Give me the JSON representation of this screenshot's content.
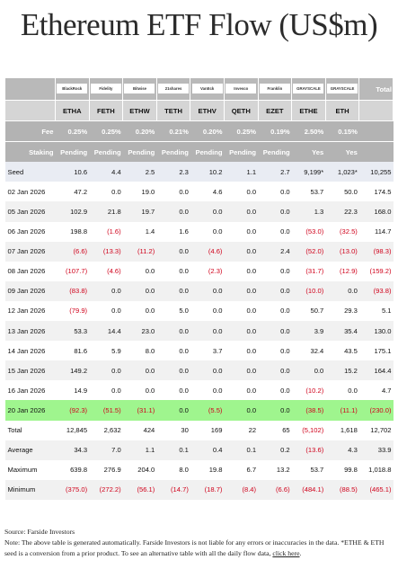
{
  "title": "Ethereum ETF Flow (US$m)",
  "table": {
    "logos": [
      "BlackRock",
      "Fidelity",
      "Bitwise",
      "21shares",
      "VanEck",
      "Invesco",
      "Franklin",
      "GRAYSCALE",
      "GRAYSCALE"
    ],
    "total_header": "Total",
    "tickers": [
      "ETHA",
      "FETH",
      "ETHW",
      "TETH",
      "ETHV",
      "QETH",
      "EZET",
      "ETHE",
      "ETH"
    ],
    "meta_rows": [
      [
        "Fee",
        "0.25%",
        "0.25%",
        "0.20%",
        "0.21%",
        "0.20%",
        "0.25%",
        "0.19%",
        "2.50%",
        "0.15%"
      ],
      [
        "Staking",
        "Pending",
        "Pending",
        "Pending",
        "Pending",
        "Pending",
        "Pending",
        "Pending",
        "Yes",
        "Yes"
      ]
    ],
    "seed_row": [
      "Seed",
      "10.6",
      "4.4",
      "2.5",
      "2.3",
      "10.2",
      "1.1",
      "2.7",
      "9,199*",
      "1,023*",
      "10,255"
    ],
    "rows": [
      [
        "02 Jan 2026",
        "47.2",
        "0.0",
        "19.0",
        "0.0",
        "4.6",
        "0.0",
        "0.0",
        "53.7",
        "50.0",
        "174.5"
      ],
      [
        "05 Jan 2026",
        "102.9",
        "21.8",
        "19.7",
        "0.0",
        "0.0",
        "0.0",
        "0.0",
        "1.3",
        "22.3",
        "168.0"
      ],
      [
        "06 Jan 2026",
        "198.8",
        "(1.6)",
        "1.4",
        "1.6",
        "0.0",
        "0.0",
        "0.0",
        "(53.0)",
        "(32.5)",
        "114.7"
      ],
      [
        "07 Jan 2026",
        "(6.6)",
        "(13.3)",
        "(11.2)",
        "0.0",
        "(4.6)",
        "0.0",
        "2.4",
        "(52.0)",
        "(13.0)",
        "(98.3)"
      ],
      [
        "08 Jan 2026",
        "(107.7)",
        "(4.6)",
        "0.0",
        "0.0",
        "(2.3)",
        "0.0",
        "0.0",
        "(31.7)",
        "(12.9)",
        "(159.2)"
      ],
      [
        "09 Jan 2026",
        "(83.8)",
        "0.0",
        "0.0",
        "0.0",
        "0.0",
        "0.0",
        "0.0",
        "(10.0)",
        "0.0",
        "(93.8)"
      ],
      [
        "12 Jan 2026",
        "(79.9)",
        "0.0",
        "0.0",
        "5.0",
        "0.0",
        "0.0",
        "0.0",
        "50.7",
        "29.3",
        "5.1"
      ],
      [
        "13 Jan 2026",
        "53.3",
        "14.4",
        "23.0",
        "0.0",
        "0.0",
        "0.0",
        "0.0",
        "3.9",
        "35.4",
        "130.0"
      ],
      [
        "14 Jan 2026",
        "81.6",
        "5.9",
        "8.0",
        "0.0",
        "3.7",
        "0.0",
        "0.0",
        "32.4",
        "43.5",
        "175.1"
      ],
      [
        "15 Jan 2026",
        "149.2",
        "0.0",
        "0.0",
        "0.0",
        "0.0",
        "0.0",
        "0.0",
        "0.0",
        "15.2",
        "164.4"
      ],
      [
        "16 Jan 2026",
        "14.9",
        "0.0",
        "0.0",
        "0.0",
        "0.0",
        "0.0",
        "0.0",
        "(10.2)",
        "0.0",
        "4.7"
      ],
      [
        "20 Jan 2026",
        "(92.3)",
        "(51.5)",
        "(31.1)",
        "0.0",
        "(5.5)",
        "0.0",
        "0.0",
        "(38.5)",
        "(11.1)",
        "(230.0)"
      ]
    ],
    "stat_rows": [
      [
        "Total",
        "12,845",
        "2,632",
        "424",
        "30",
        "169",
        "22",
        "65",
        "(5,102)",
        "1,618",
        "12,702"
      ],
      [
        "Average",
        "34.3",
        "7.0",
        "1.1",
        "0.1",
        "0.4",
        "0.1",
        "0.2",
        "(13.6)",
        "4.3",
        "33.9"
      ],
      [
        "Maximum",
        "639.8",
        "276.9",
        "204.0",
        "8.0",
        "19.8",
        "6.7",
        "13.2",
        "53.7",
        "99.8",
        "1,018.8"
      ],
      [
        "Minimum",
        "(375.0)",
        "(272.2)",
        "(56.1)",
        "(14.7)",
        "(18.7)",
        "(8.4)",
        "(6.6)",
        "(484.1)",
        "(88.5)",
        "(465.1)"
      ]
    ]
  },
  "footer": {
    "source": "Source: Farside Investors",
    "note": "Note: The above table is generated automatically. Farside Investors is not liable for any errors or inaccuracies in the data. *ETHE & ETH seed is a conversion from a prior product.  To see an alternative table with all the daily flow data,",
    "link": "click here"
  }
}
